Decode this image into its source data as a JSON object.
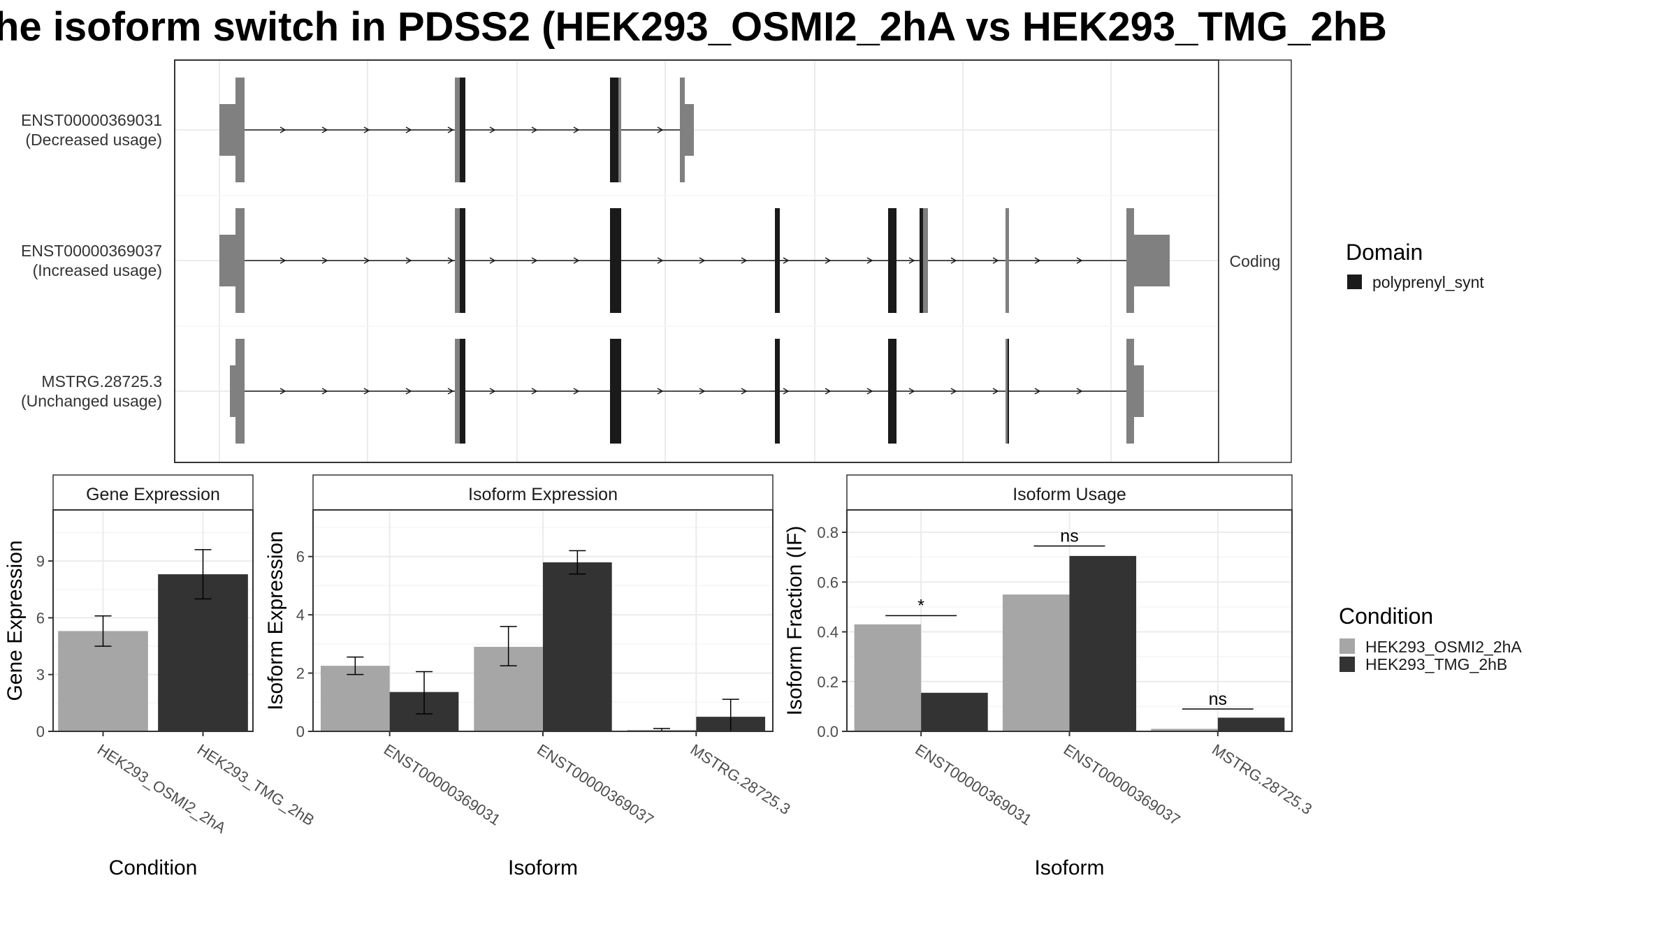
{
  "title": "he isoform switch in PDSS2 (HEK293_OSMI2_2hA vs HEK293_TMG_2hB",
  "colors": {
    "cond_a": "#a6a6a6",
    "cond_b": "#333333",
    "domain": "#1a1a1a",
    "utr": "#808080",
    "noncoding_exon": "#808080"
  },
  "structure": {
    "strip_label": "Coding",
    "isoforms": [
      {
        "id": "ENST00000369031",
        "note": "(Decreased usage)"
      },
      {
        "id": "ENST00000369037",
        "note": "(Increased usage)"
      },
      {
        "id": "MSTRG.28725.3",
        "note": "(Unchanged usage)"
      }
    ],
    "legend": {
      "title": "Domain",
      "items": [
        "polyprenyl_synt"
      ]
    }
  },
  "chart_data": [
    {
      "type": "bar",
      "title": "Gene Expression",
      "xlabel": "Condition",
      "ylabel": "Gene Expression",
      "categories": [
        "HEK293_OSMI2_2hA",
        "HEK293_TMG_2hB"
      ],
      "values": [
        5.3,
        8.3
      ],
      "errors": [
        [
          4.5,
          6.1
        ],
        [
          7.0,
          9.6
        ]
      ],
      "ylim": [
        0,
        11.7
      ],
      "yticks": [
        0,
        3,
        6,
        9
      ]
    },
    {
      "type": "bar",
      "title": "Isoform Expression",
      "xlabel": "Isoform",
      "ylabel": "Isoform Expression",
      "categories": [
        "ENST00000369031",
        "ENST00000369037",
        "MSTRG.28725.3"
      ],
      "series": [
        {
          "name": "HEK293_OSMI2_2hA",
          "values": [
            2.25,
            2.9,
            0.05
          ],
          "errors": [
            [
              1.95,
              2.55
            ],
            [
              2.25,
              3.6
            ],
            [
              0.0,
              0.1
            ]
          ]
        },
        {
          "name": "HEK293_TMG_2hB",
          "values": [
            1.35,
            5.8,
            0.5
          ],
          "errors": [
            [
              0.6,
              2.05
            ],
            [
              5.4,
              6.2
            ],
            [
              0.0,
              1.1
            ]
          ]
        }
      ],
      "ylim": [
        0,
        7.6
      ],
      "yticks": [
        0,
        2,
        4,
        6
      ]
    },
    {
      "type": "bar",
      "title": "Isoform Usage",
      "xlabel": "Isoform",
      "ylabel": "Isoform Fraction (IF)",
      "categories": [
        "ENST00000369031",
        "ENST00000369037",
        "MSTRG.28725.3"
      ],
      "series": [
        {
          "name": "HEK293_OSMI2_2hA",
          "values": [
            0.43,
            0.55,
            0.01
          ]
        },
        {
          "name": "HEK293_TMG_2hB",
          "values": [
            0.155,
            0.705,
            0.055
          ]
        }
      ],
      "significance": [
        {
          "label": "*",
          "y": 0.465
        },
        {
          "label": "ns",
          "y": 0.745
        },
        {
          "label": "ns",
          "y": 0.09
        }
      ],
      "ylim": [
        0,
        0.89
      ],
      "yticks": [
        0.0,
        0.2,
        0.4,
        0.6,
        0.8
      ],
      "ytick_labels": [
        "0.0",
        "0.2",
        "0.4",
        "0.6",
        "0.8"
      ]
    }
  ],
  "condition_legend": {
    "title": "Condition",
    "items": [
      "HEK293_OSMI2_2hA",
      "HEK293_TMG_2hB"
    ]
  }
}
